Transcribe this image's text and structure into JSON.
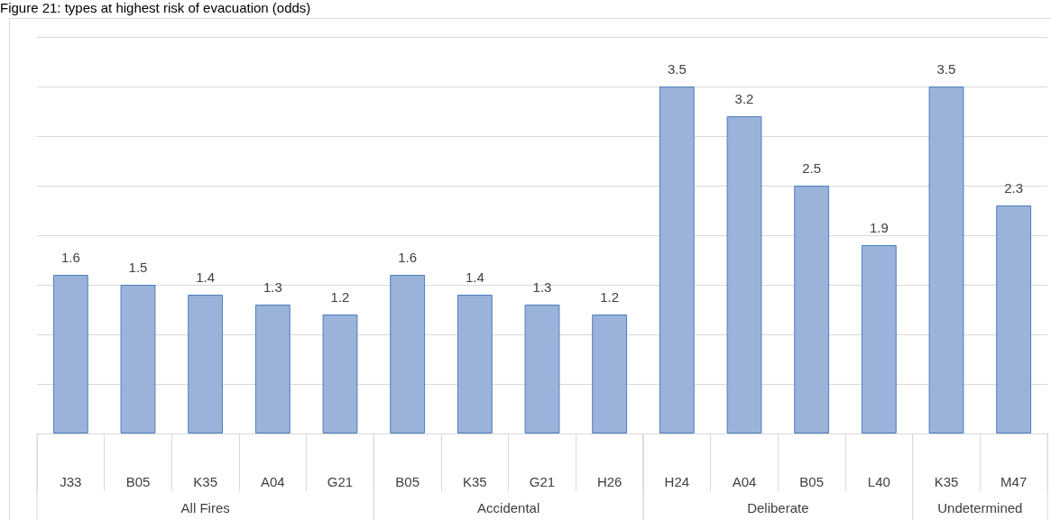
{
  "chart_data": {
    "type": "bar",
    "title": "Figure 21: types at highest risk of evacuation (odds)",
    "categories": [
      "J33",
      "B05",
      "K35",
      "A04",
      "G21",
      "B05",
      "K35",
      "G21",
      "H26",
      "H24",
      "A04",
      "B05",
      "L40",
      "K35",
      "M47"
    ],
    "series": [
      {
        "color": "#9bb3da",
        "values": [
          1.6,
          1.5,
          1.4,
          1.3,
          1.2,
          null,
          null,
          null,
          null,
          null,
          null,
          null,
          null,
          null,
          null
        ]
      },
      {
        "color": "#9bb3da",
        "values": [
          null,
          null,
          null,
          null,
          null,
          1.6,
          1.4,
          1.3,
          1.2,
          null,
          null,
          null,
          null,
          null,
          null
        ]
      },
      {
        "color": "#9bb3da",
        "values": [
          null,
          null,
          null,
          null,
          null,
          null,
          null,
          null,
          null,
          3.5,
          3.2,
          2.5,
          1.9,
          null,
          null
        ]
      },
      {
        "color": "#9bb3da",
        "values": [
          null,
          null,
          null,
          null,
          null,
          null,
          null,
          null,
          null,
          null,
          null,
          null,
          null,
          3.5,
          2.3
        ]
      }
    ],
    "ylim": [
      0,
      4
    ],
    "yticks": [
      {
        "value": 0,
        "label": null
      },
      {
        "value": 0.5,
        "label": null
      },
      {
        "value": 1,
        "label": null
      },
      {
        "value": 1.5,
        "label": null
      },
      {
        "value": 2,
        "label": null
      },
      {
        "value": 2.5,
        "label": null
      },
      {
        "value": 3,
        "label": null
      },
      {
        "value": 3.5,
        "label": null
      },
      {
        "value": 4,
        "label": null
      }
    ],
    "annotations": [
      "All Fires",
      "Accidental",
      "Deliberate",
      "Undetermined"
    ],
    "tick_labels": "x",
    "grid": "y",
    "data_labels": true
  }
}
